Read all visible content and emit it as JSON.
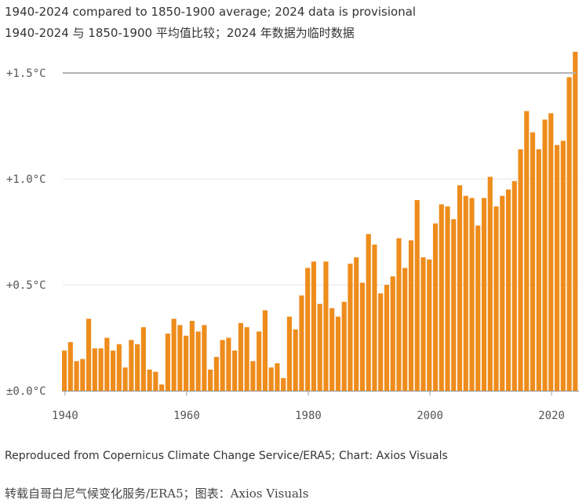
{
  "subtitle_en": "1940-2024 compared to 1850-1900 average; 2024 data is provisional",
  "subtitle_zh": "1940-2024 与 1850-1900 平均值比较；2024 年数据为临时数据",
  "source_en": "Reproduced from Copernicus Climate Change Service/ERA5; Chart: Axios Visuals",
  "source_zh": "转载自哥白尼气候变化服务/ERA5；图表：Axios Visuals",
  "colors": {
    "bar": "#ee8c1c",
    "grid": "#e4e4e4",
    "reference_line": "#b3b3b3",
    "axis": "#999999"
  },
  "chart_data": {
    "type": "bar",
    "title": "",
    "xlabel": "",
    "ylabel": "",
    "ylim": [
      0,
      1.6
    ],
    "xlim": [
      1940,
      2024
    ],
    "grid": true,
    "reference_line": 1.5,
    "yticks": [
      {
        "value": 0,
        "label": "±0.0°C"
      },
      {
        "value": 0.5,
        "label": "+0.5°C"
      },
      {
        "value": 1.0,
        "label": "+1.0°C"
      },
      {
        "value": 1.5,
        "label": "+1.5°C"
      }
    ],
    "xticks": [
      1940,
      1960,
      1980,
      2000,
      2020
    ],
    "series": [
      {
        "x": [
          1940,
          1941,
          1942,
          1943,
          1944,
          1945,
          1946,
          1947,
          1948,
          1949,
          1950,
          1951,
          1952,
          1953,
          1954,
          1955,
          1956,
          1957,
          1958,
          1959,
          1960,
          1961,
          1962,
          1963,
          1964,
          1965,
          1966,
          1967,
          1968,
          1969,
          1970,
          1971,
          1972,
          1973,
          1974,
          1975,
          1976,
          1977,
          1978,
          1979,
          1980,
          1981,
          1982,
          1983,
          1984,
          1985,
          1986,
          1987,
          1988,
          1989,
          1990,
          1991,
          1992,
          1993,
          1994,
          1995,
          1996,
          1997,
          1998,
          1999,
          2000,
          2001,
          2002,
          2003,
          2004,
          2005,
          2006,
          2007,
          2008,
          2009,
          2010,
          2011,
          2012,
          2013,
          2014,
          2015,
          2016,
          2017,
          2018,
          2019,
          2020,
          2021,
          2022,
          2023,
          2024
        ],
        "values": [
          0.19,
          0.23,
          0.14,
          0.15,
          0.34,
          0.2,
          0.2,
          0.25,
          0.19,
          0.22,
          0.11,
          0.24,
          0.22,
          0.3,
          0.1,
          0.09,
          0.03,
          0.27,
          0.34,
          0.31,
          0.26,
          0.33,
          0.28,
          0.31,
          0.1,
          0.16,
          0.24,
          0.25,
          0.19,
          0.32,
          0.3,
          0.14,
          0.28,
          0.38,
          0.11,
          0.13,
          0.06,
          0.35,
          0.29,
          0.45,
          0.58,
          0.61,
          0.41,
          0.61,
          0.39,
          0.35,
          0.42,
          0.6,
          0.63,
          0.51,
          0.74,
          0.69,
          0.46,
          0.5,
          0.54,
          0.72,
          0.58,
          0.71,
          0.9,
          0.63,
          0.62,
          0.79,
          0.88,
          0.87,
          0.81,
          0.97,
          0.92,
          0.91,
          0.78,
          0.91,
          1.01,
          0.87,
          0.92,
          0.95,
          0.99,
          1.14,
          1.32,
          1.22,
          1.14,
          1.28,
          1.31,
          1.16,
          1.18,
          1.48,
          1.6
        ]
      }
    ]
  }
}
